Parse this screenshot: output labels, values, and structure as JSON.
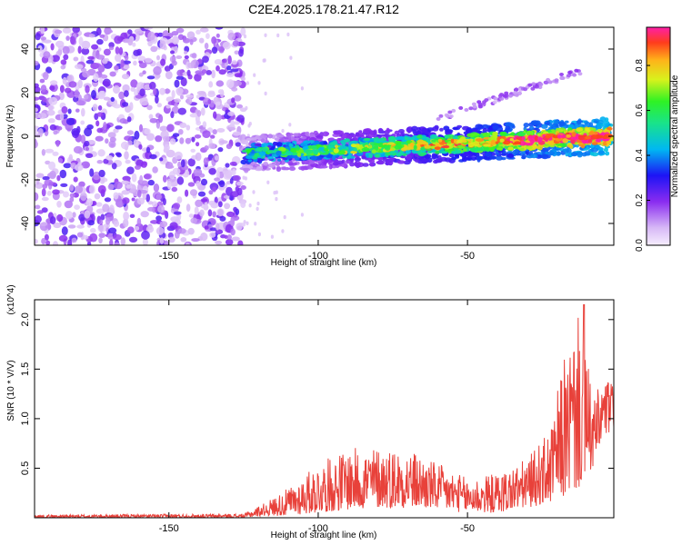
{
  "title": "C2E4.2025.178.21.47.R12",
  "colors": {
    "line": "#e8413a",
    "frame": "#000000"
  },
  "chart_data": [
    {
      "type": "heatmap",
      "xlabel": "Height of straight line (km)",
      "ylabel": "Frequency (Hz)",
      "xlim": [
        -195,
        -1
      ],
      "ylim": [
        -50,
        50
      ],
      "x_ticks": [
        -150,
        -100,
        -50
      ],
      "y_ticks": [
        -40,
        -20,
        0,
        20,
        40
      ],
      "colorbar": {
        "label": "Normalized spectral amplitude",
        "range": [
          0,
          0.97
        ],
        "ticks": [
          0.0,
          0.2,
          0.4,
          0.6,
          0.8
        ],
        "colormap": "rainbow"
      },
      "regions": {
        "noise_x_range": [
          -195,
          -125
        ],
        "noise_y_range": [
          -50,
          50
        ],
        "noise_level": [
          0.05,
          0.28
        ],
        "main_band_x_range": [
          -125,
          -2
        ],
        "main_band_freq_start": -8,
        "main_band_freq_end": 0,
        "main_band_amp_start": 0.3,
        "main_band_amp_end": 0.92,
        "harmonic_x_range": [
          -60,
          -12
        ],
        "harmonic_freq_start": 8,
        "harmonic_freq_end": 30
      }
    },
    {
      "type": "line",
      "xlabel": "Height of straight line (km)",
      "ylabel": "SNR (10 * V/V)",
      "y_scale_label": "(x10^4)",
      "xlim": [
        -195,
        -1
      ],
      "ylim": [
        0,
        2.2
      ],
      "x_ticks": [
        -150,
        -100,
        -50
      ],
      "y_ticks": [
        0.5,
        1.0,
        1.5,
        2.0
      ],
      "grid": false,
      "series": [
        {
          "envelope": [
            {
              "x": -195,
              "low": 0.0,
              "high": 0.03
            },
            {
              "x": -125,
              "low": 0.0,
              "high": 0.04
            },
            {
              "x": -118,
              "low": 0.02,
              "high": 0.15
            },
            {
              "x": -110,
              "low": 0.02,
              "high": 0.3
            },
            {
              "x": -100,
              "low": 0.05,
              "high": 0.55
            },
            {
              "x": -90,
              "low": 0.08,
              "high": 0.7
            },
            {
              "x": -80,
              "low": 0.1,
              "high": 0.72
            },
            {
              "x": -70,
              "low": 0.1,
              "high": 0.7
            },
            {
              "x": -60,
              "low": 0.08,
              "high": 0.55
            },
            {
              "x": -50,
              "low": 0.05,
              "high": 0.4
            },
            {
              "x": -40,
              "low": 0.05,
              "high": 0.45
            },
            {
              "x": -30,
              "low": 0.1,
              "high": 0.6
            },
            {
              "x": -22,
              "low": 0.15,
              "high": 0.9
            },
            {
              "x": -18,
              "low": 0.2,
              "high": 1.6
            },
            {
              "x": -12,
              "low": 0.3,
              "high": 2.1
            },
            {
              "x": -8,
              "low": 0.5,
              "high": 1.2
            },
            {
              "x": -4,
              "low": 0.8,
              "high": 1.45
            },
            {
              "x": -1,
              "low": 0.9,
              "high": 1.35
            }
          ],
          "peak": {
            "x": -11,
            "y": 2.15
          }
        }
      ]
    }
  ]
}
